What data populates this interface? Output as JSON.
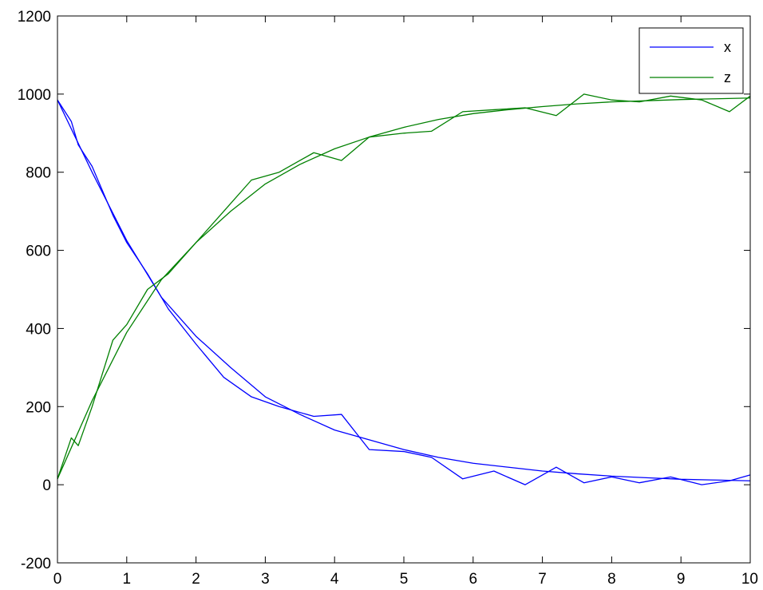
{
  "chart_data": {
    "type": "line",
    "title": "",
    "xlabel": "",
    "ylabel": "",
    "xlim": [
      0,
      10
    ],
    "ylim": [
      -200,
      1200
    ],
    "xticks": [
      "0",
      "1",
      "2",
      "3",
      "4",
      "5",
      "6",
      "7",
      "8",
      "9",
      "10"
    ],
    "yticks": [
      "-200",
      "0",
      "200",
      "400",
      "600",
      "800",
      "1000",
      "1200"
    ],
    "grid": false,
    "legend": {
      "position": "top-right",
      "entries": [
        "x",
        "z"
      ]
    },
    "series": [
      {
        "name": "x",
        "color": "#0000ff",
        "x": [
          0,
          0.5,
          1,
          1.5,
          2,
          2.5,
          3,
          3.5,
          4,
          4.5,
          5,
          5.5,
          6,
          6.5,
          7,
          7.5,
          8,
          8.5,
          9,
          9.5,
          10
        ],
        "y": [
          985,
          800,
          625,
          480,
          380,
          300,
          225,
          180,
          140,
          115,
          90,
          70,
          55,
          45,
          35,
          28,
          22,
          18,
          14,
          12,
          10
        ]
      },
      {
        "name": "x",
        "color": "#0000ff",
        "x": [
          0,
          0.2,
          0.3,
          0.5,
          0.8,
          1.0,
          1.3,
          1.6,
          2.0,
          2.4,
          2.8,
          3.2,
          3.7,
          4.1,
          4.5,
          5.0,
          5.4,
          5.85,
          6.3,
          6.75,
          7.2,
          7.6,
          8.0,
          8.4,
          8.85,
          9.3,
          9.7,
          10
        ],
        "y": [
          985,
          930,
          870,
          815,
          690,
          620,
          540,
          450,
          360,
          275,
          225,
          200,
          175,
          180,
          90,
          85,
          70,
          15,
          35,
          0,
          45,
          5,
          20,
          5,
          20,
          0,
          10,
          25
        ]
      },
      {
        "name": "z",
        "color": "#008000",
        "x": [
          0,
          0.5,
          1,
          1.5,
          2,
          2.5,
          3,
          3.5,
          4,
          4.5,
          5,
          5.5,
          6,
          6.5,
          7,
          7.5,
          8,
          8.5,
          9,
          9.5,
          10
        ],
        "y": [
          15,
          215,
          390,
          525,
          620,
          700,
          770,
          820,
          860,
          890,
          915,
          935,
          950,
          960,
          968,
          975,
          980,
          983,
          986,
          988,
          990
        ]
      },
      {
        "name": "z",
        "color": "#008000",
        "x": [
          0,
          0.2,
          0.3,
          0.5,
          0.8,
          1.0,
          1.3,
          1.6,
          2.0,
          2.4,
          2.8,
          3.2,
          3.7,
          4.1,
          4.5,
          5.0,
          5.4,
          5.85,
          6.3,
          6.75,
          7.2,
          7.6,
          8.0,
          8.4,
          8.85,
          9.3,
          9.7,
          10
        ],
        "y": [
          15,
          120,
          100,
          200,
          370,
          410,
          500,
          540,
          620,
          700,
          780,
          800,
          850,
          830,
          890,
          900,
          905,
          955,
          960,
          965,
          945,
          1000,
          985,
          980,
          995,
          985,
          955,
          995
        ]
      }
    ]
  }
}
